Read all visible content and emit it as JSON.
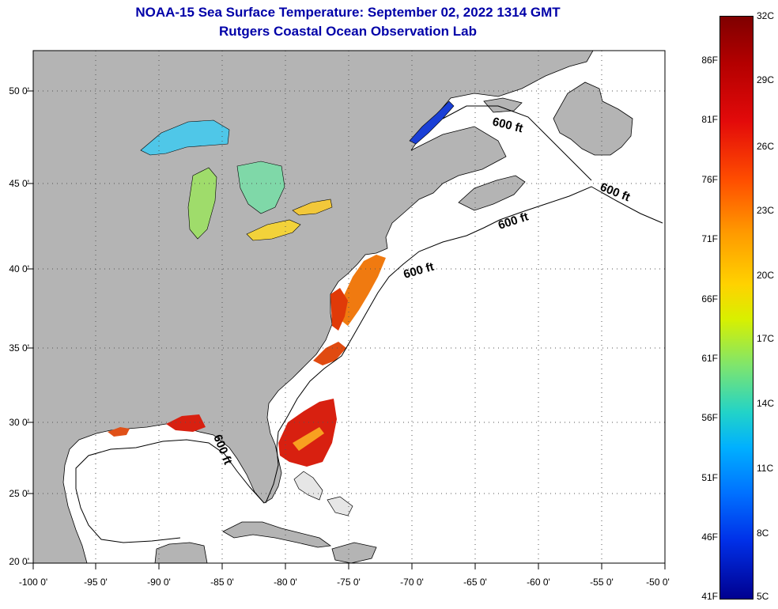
{
  "title": {
    "line1": "NOAA-15 Sea Surface Temperature:  September 02, 2022 1314 GMT",
    "line2": "Rutgers Coastal Ocean Observation Lab"
  },
  "map": {
    "longitude_ticks": [
      "-100 0'",
      "-95 0'",
      "-90 0'",
      "-85 0'",
      "-80 0'",
      "-75 0'",
      "-70 0'",
      "-65 0'",
      "-60 0'",
      "-55 0'",
      "-50 0'"
    ],
    "latitude_ticks": [
      "50 0'",
      "45 0'",
      "40 0'",
      "35 0'",
      "30 0'",
      "25 0'",
      "20 0'"
    ],
    "contour_labels": [
      "600 ft",
      "600 ft",
      "600 ft",
      "600 ft",
      "600 ft"
    ],
    "colors": {
      "land": "#b4b4b4",
      "ocean_no_data": "#ffffff",
      "grid": "#555555"
    }
  },
  "colorbar": {
    "fahrenheit": [
      "86F",
      "81F",
      "76F",
      "71F",
      "66F",
      "61F",
      "56F",
      "51F",
      "46F",
      "41F"
    ],
    "celsius": [
      "32C",
      "29C",
      "26C",
      "23C",
      "20C",
      "17C",
      "14C",
      "11C",
      "8C",
      "5C"
    ]
  }
}
